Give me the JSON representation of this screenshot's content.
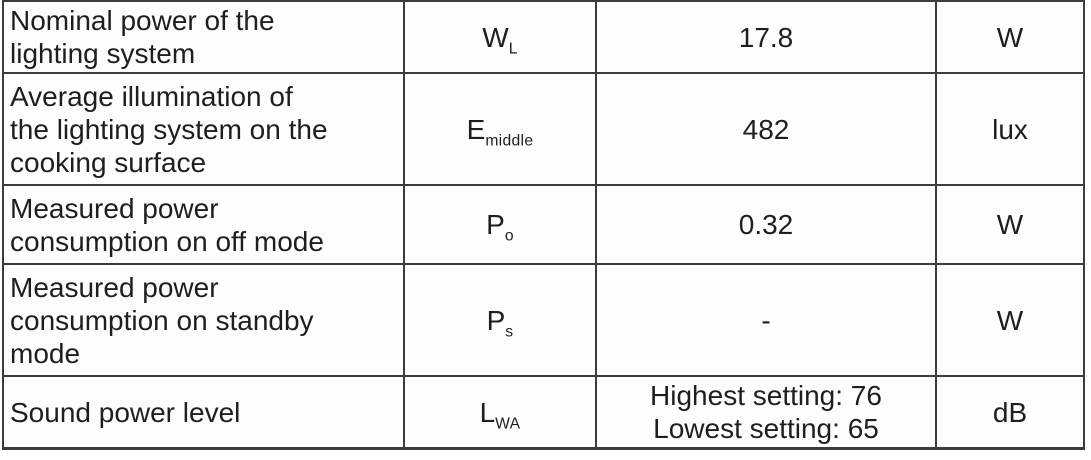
{
  "table": {
    "rows": [
      {
        "description": "Nominal power of the\nlighting system",
        "symbol_base": "W",
        "symbol_sub": "L",
        "value": "17.8",
        "unit": "W"
      },
      {
        "description": "Average illumination of\nthe lighting system on the\ncooking surface",
        "symbol_base": "E",
        "symbol_sub": "middle",
        "value": "482",
        "unit": "lux"
      },
      {
        "description": "Measured power\nconsumption on off mode",
        "symbol_base": "P",
        "symbol_sub": "o",
        "value": "0.32",
        "unit": "W"
      },
      {
        "description": "Measured power\nconsumption on standby\nmode",
        "symbol_base": "P",
        "symbol_sub": "s",
        "value": "-",
        "unit": "W"
      },
      {
        "description": "Sound power level",
        "symbol_base": "L",
        "symbol_sub": "WA",
        "value": "Highest setting: 76\nLowest setting: 65",
        "unit": "dB"
      }
    ]
  },
  "colors": {
    "border": "#3c3c3c",
    "text": "#1e1e1e",
    "background": "#fdfdfd"
  }
}
